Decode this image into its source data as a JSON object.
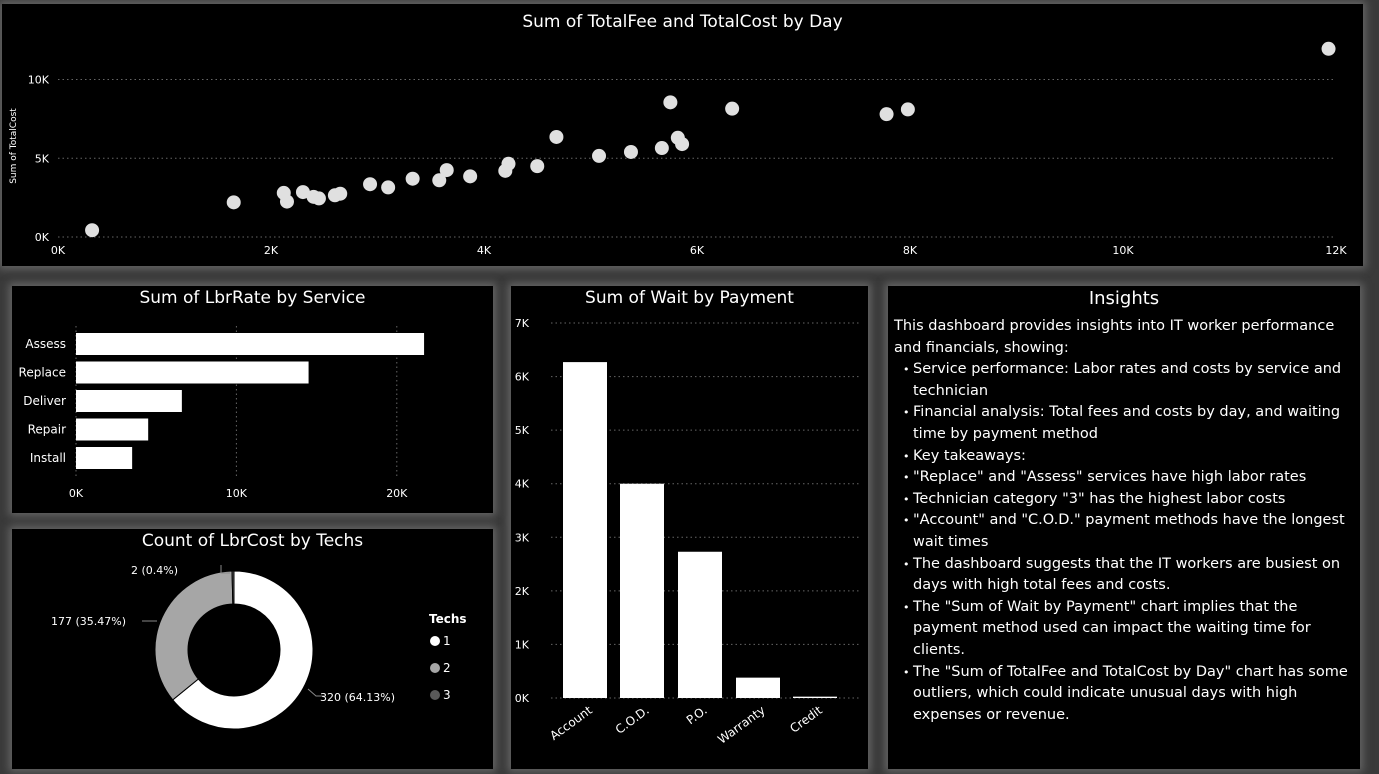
{
  "scatter": {
    "title": "Sum of TotalFee and TotalCost by Day",
    "ylabel": "Sum of TotalCost",
    "x_ticks": [
      "0K",
      "2K",
      "4K",
      "6K",
      "8K",
      "10K",
      "12K"
    ],
    "y_ticks": [
      "0K",
      "5K",
      "10K"
    ]
  },
  "bar_service": {
    "title": "Sum of LbrRate by Service",
    "x_ticks": [
      "0K",
      "10K",
      "20K"
    ]
  },
  "bar_payment": {
    "title": "Sum of Wait by Payment",
    "y_ticks": [
      "0K",
      "1K",
      "2K",
      "3K",
      "4K",
      "5K",
      "6K",
      "7K"
    ]
  },
  "donut": {
    "title": "Count of LbrCost by Techs",
    "legend_title": "Techs"
  },
  "insights": {
    "title": "Insights",
    "intro": "This dashboard provides insights into IT worker performance and financials, showing:",
    "bullets": [
      "Service performance: Labor rates and costs by service and technician",
      "Financial analysis: Total fees and costs by day, and waiting time by payment method",
      "Key takeaways:",
      "\"Replace\" and \"Assess\" services have high labor rates",
      "Technician category \"3\" has the highest labor costs",
      "\"Account\" and \"C.O.D.\" payment methods have the longest wait times",
      "The dashboard suggests that the IT workers are busiest on days with high total fees and costs.",
      "The \"Sum of Wait by Payment\" chart implies that the payment method used can impact the waiting time for clients.",
      "The \"Sum of TotalFee and TotalCost by Day\" chart has some outliers, which could indicate unusual days with high expenses or revenue."
    ]
  },
  "colors": {
    "background": "#000000",
    "mark": "#ffffff",
    "grid": "#666666",
    "tech_1": "#ffffff",
    "tech_2": "#a6a6a6",
    "tech_3": "#595959"
  },
  "chart_data": [
    {
      "type": "scatter",
      "title": "Sum of TotalFee and TotalCost by Day",
      "xlabel": "",
      "ylabel": "Sum of TotalCost",
      "xlim": [
        0,
        12000
      ],
      "ylim": [
        0,
        12000
      ],
      "grid": true,
      "points": [
        [
          320,
          430
        ],
        [
          1650,
          2200
        ],
        [
          2120,
          2800
        ],
        [
          2150,
          2250
        ],
        [
          2300,
          2850
        ],
        [
          2400,
          2550
        ],
        [
          2450,
          2450
        ],
        [
          2600,
          2650
        ],
        [
          2650,
          2750
        ],
        [
          2930,
          3350
        ],
        [
          3100,
          3150
        ],
        [
          3330,
          3700
        ],
        [
          3580,
          3600
        ],
        [
          3650,
          4250
        ],
        [
          3870,
          3850
        ],
        [
          4200,
          4200
        ],
        [
          4230,
          4650
        ],
        [
          4500,
          4500
        ],
        [
          4680,
          6350
        ],
        [
          5080,
          5150
        ],
        [
          5380,
          5400
        ],
        [
          5670,
          5650
        ],
        [
          5750,
          8550
        ],
        [
          5820,
          6300
        ],
        [
          5860,
          5900
        ],
        [
          6330,
          8150
        ],
        [
          7780,
          7800
        ],
        [
          7980,
          8100
        ],
        [
          11930,
          11950
        ]
      ]
    },
    {
      "type": "bar",
      "orientation": "horizontal",
      "title": "Sum of LbrRate by Service",
      "categories": [
        "Assess",
        "Replace",
        "Deliver",
        "Repair",
        "Install"
      ],
      "values": [
        21700,
        14500,
        6600,
        4500,
        3500
      ],
      "xlim": [
        0,
        25000
      ],
      "grid": true
    },
    {
      "type": "bar",
      "orientation": "vertical",
      "title": "Sum of Wait by Payment",
      "categories": [
        "Account",
        "C.O.D.",
        "P.O.",
        "Warranty",
        "Credit"
      ],
      "values": [
        6270,
        4000,
        2730,
        380,
        25
      ],
      "ylim": [
        0,
        7000
      ],
      "grid": true
    },
    {
      "type": "pie",
      "style": "donut",
      "title": "Count of LbrCost by Techs",
      "legend_title": "Techs",
      "legend_position": "right",
      "slices": [
        {
          "name": "1",
          "value": 320,
          "label": "320 (64.13%)"
        },
        {
          "name": "2",
          "value": 177,
          "label": "177 (35.47%)"
        },
        {
          "name": "3",
          "value": 2,
          "label": "2 (0.4%)"
        }
      ]
    }
  ]
}
